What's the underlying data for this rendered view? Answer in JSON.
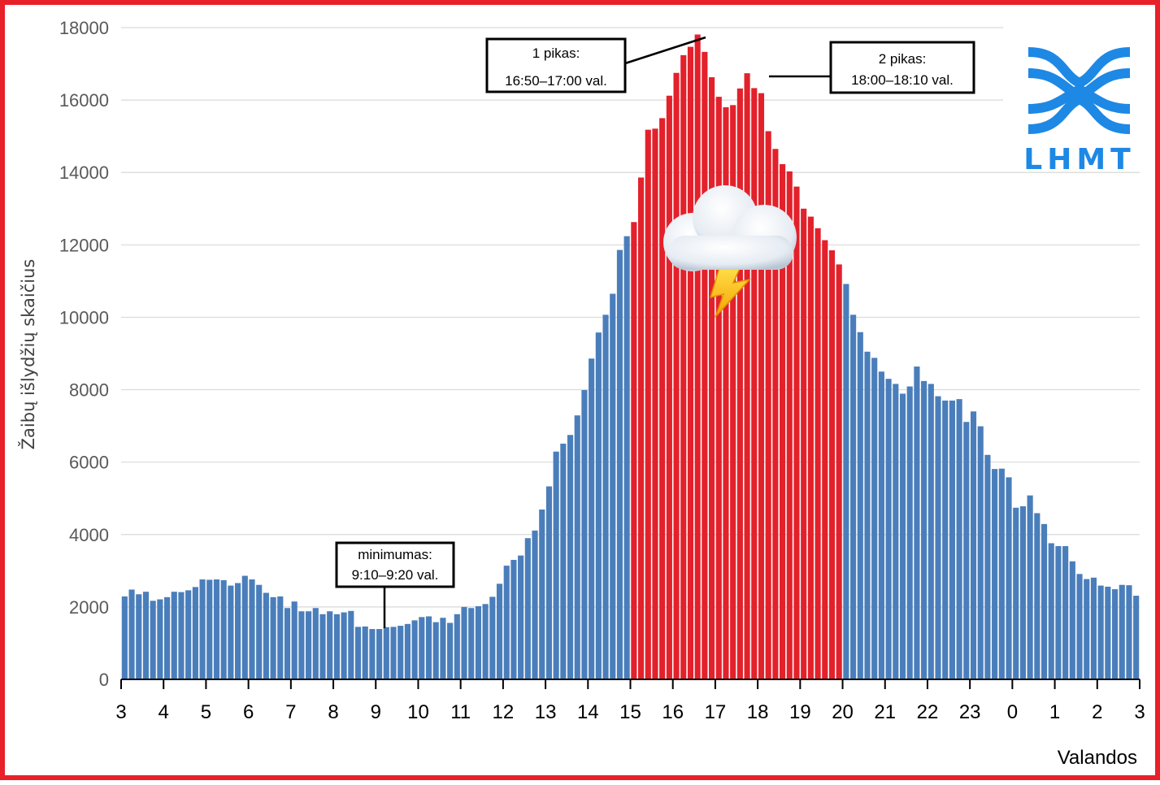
{
  "chart_data": {
    "type": "bar",
    "ylabel": "Žaibų išlydžių skaičius",
    "xlabel": "Valandos",
    "ylim": [
      0,
      18000
    ],
    "yticks": [
      0,
      2000,
      4000,
      6000,
      8000,
      10000,
      12000,
      14000,
      16000,
      18000
    ],
    "xtick_labels": [
      "3",
      "4",
      "5",
      "6",
      "7",
      "8",
      "9",
      "10",
      "11",
      "12",
      "13",
      "14",
      "15",
      "16",
      "17",
      "18",
      "19",
      "20",
      "21",
      "22",
      "23",
      "0",
      "1",
      "2",
      "3"
    ],
    "bin_minutes": 10,
    "grid": true,
    "colors": {
      "default": "#4a7ebb",
      "highlight": "#e3212b"
    },
    "highlight_range_hours": [
      "15",
      "20"
    ],
    "values": [
      2290,
      2480,
      2350,
      2420,
      2170,
      2210,
      2270,
      2420,
      2410,
      2460,
      2550,
      2760,
      2750,
      2760,
      2740,
      2590,
      2660,
      2860,
      2760,
      2610,
      2390,
      2270,
      2290,
      1970,
      2150,
      1880,
      1880,
      1970,
      1800,
      1880,
      1800,
      1850,
      1890,
      1450,
      1460,
      1390,
      1390,
      1440,
      1450,
      1480,
      1530,
      1630,
      1720,
      1740,
      1580,
      1700,
      1560,
      1800,
      2000,
      1970,
      2020,
      2080,
      2280,
      2640,
      3140,
      3300,
      3420,
      3900,
      4110,
      4690,
      5330,
      6290,
      6510,
      6750,
      7290,
      7990,
      8860,
      9580,
      10070,
      10650,
      11860,
      12240,
      12630,
      13860,
      15180,
      15210,
      15500,
      16120,
      16750,
      17240,
      17470,
      17810,
      17330,
      16630,
      16090,
      15800,
      15860,
      16320,
      16740,
      16330,
      16190,
      15140,
      14650,
      14230,
      14030,
      13610,
      13000,
      12780,
      12460,
      12130,
      11850,
      11460,
      10920,
      10070,
      9590,
      9050,
      8880,
      8500,
      8300,
      8160,
      7890,
      8090,
      8640,
      8240,
      8160,
      7820,
      7700,
      7700,
      7740,
      7110,
      7400,
      6990,
      6200,
      5810,
      5820,
      5580,
      4740,
      4780,
      5080,
      4590,
      4290,
      3760,
      3680,
      3680,
      3260,
      2910,
      2770,
      2810,
      2590,
      2560,
      2490,
      2610,
      2600,
      2310
    ]
  },
  "annotations": {
    "peak1": {
      "line1": "1 pikas:",
      "line2": "16:50–17:00 val."
    },
    "peak2": {
      "line1": "2 pikas:",
      "line2": "18:00–18:10 val."
    },
    "minimum": {
      "line1": "minimumas:",
      "line2": "9:10–9:20 val."
    }
  },
  "logo": {
    "text": "LHMT",
    "color": "#1e88e5"
  },
  "frame_color": "#e8202a",
  "icons": [
    "thunder-cloud-icon",
    "lhmt-logo-icon"
  ]
}
